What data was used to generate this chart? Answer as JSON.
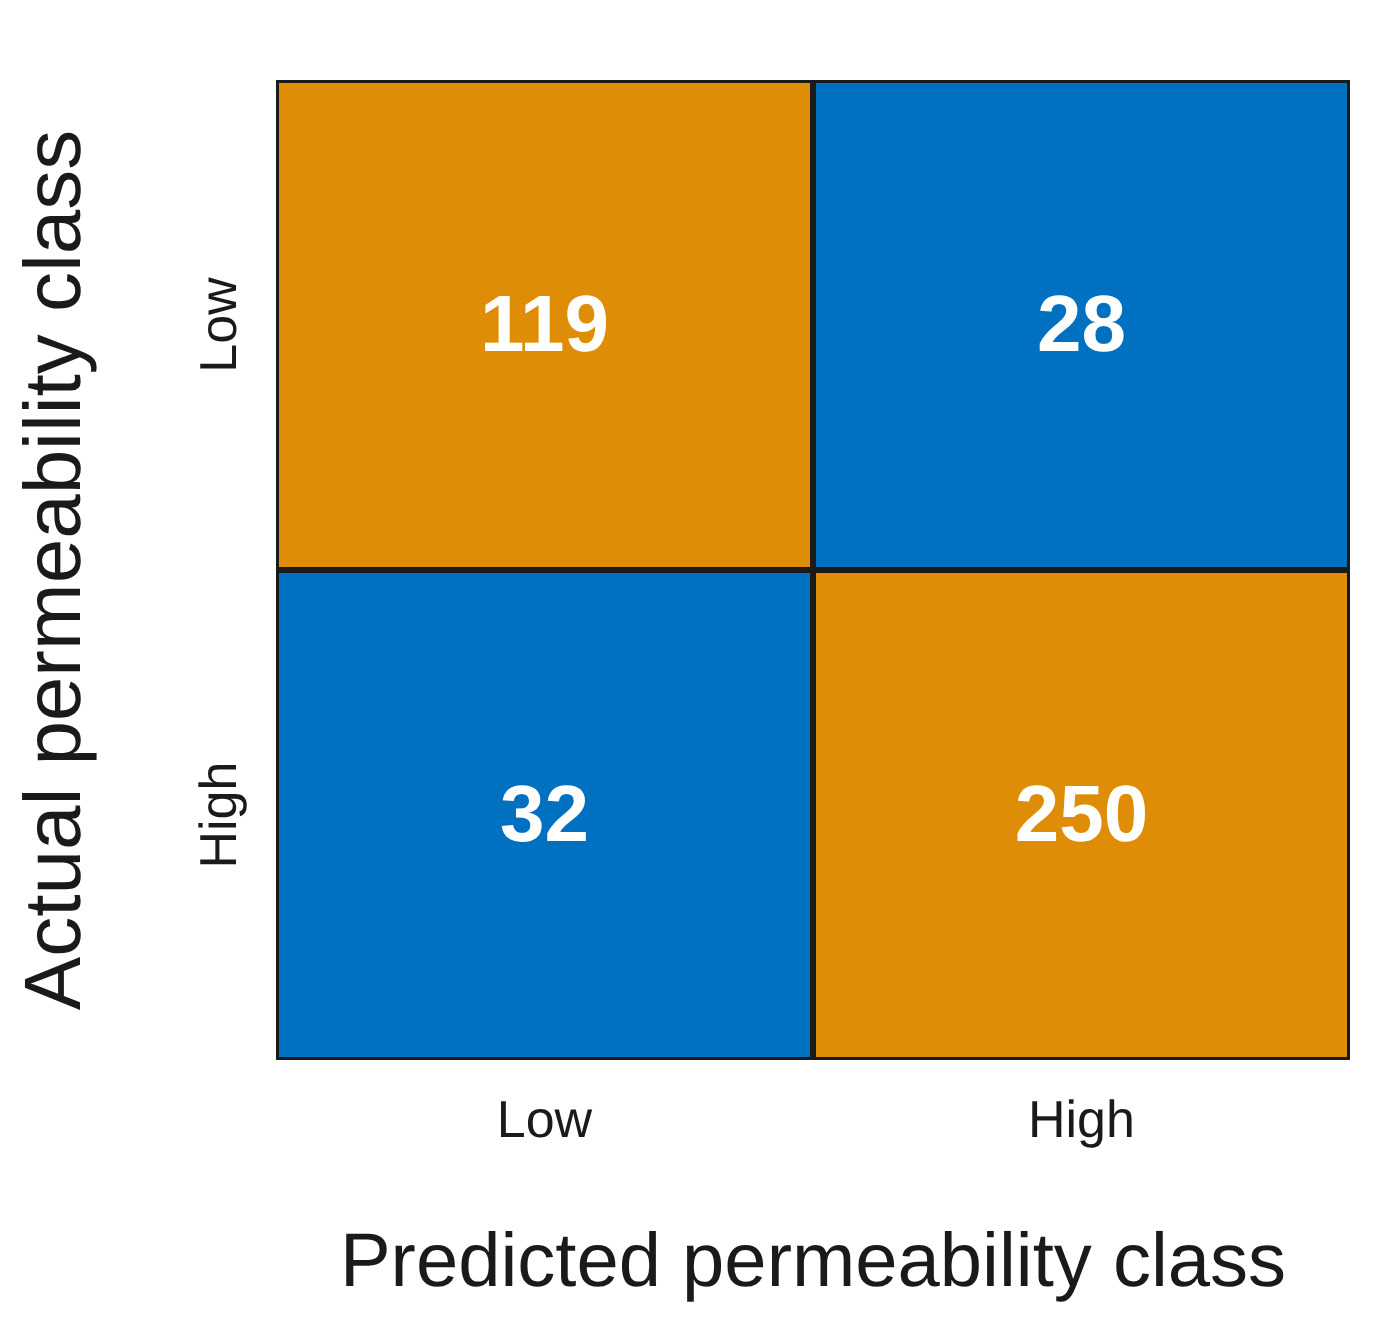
{
  "chart_data": {
    "type": "heatmap",
    "xlabel": "Predicted permeability class",
    "ylabel": "Actual permeability class",
    "categories": [
      "Low",
      "High"
    ],
    "y_categories": [
      "Low",
      "High"
    ],
    "cells": [
      [
        119,
        28
      ],
      [
        32,
        250
      ]
    ],
    "colors": [
      [
        "#df8c06",
        "#0070c0"
      ],
      [
        "#0070c0",
        "#df8c06"
      ]
    ],
    "data_labels": true
  }
}
